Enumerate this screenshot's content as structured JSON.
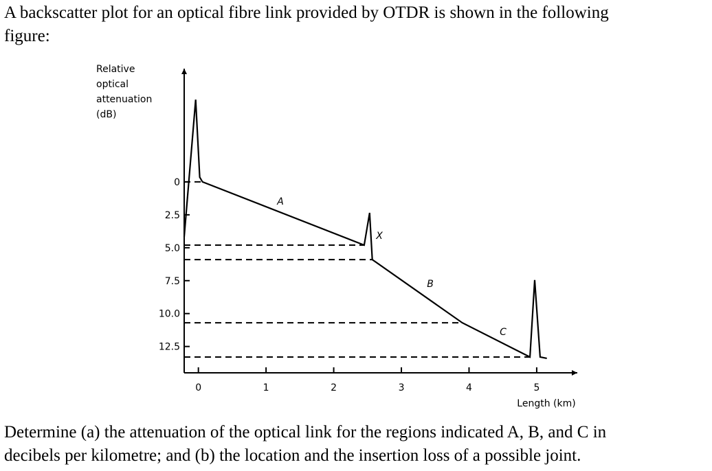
{
  "question": {
    "intro_lines": [
      "A backscatter plot for an optical fibre link provided by OTDR is shown in the following",
      "figure:"
    ],
    "task_lines": [
      "Determine (a) the attenuation of the optical link for the regions indicated A, B, and C in",
      "decibels per kilometre; and (b) the location and the insertion loss of a possible joint."
    ]
  },
  "chart_data": {
    "type": "line",
    "y_label_lines": [
      "Relative",
      "optical",
      "attenuation",
      "(dB)"
    ],
    "x_label": "Length (km)",
    "annotations": [
      "A",
      "X",
      "B",
      "C"
    ],
    "x": [
      -0.21,
      -0.04,
      0.02,
      0.06,
      2.45,
      2.53,
      2.57,
      3.9,
      4.9,
      4.97,
      5.05,
      5.15
    ],
    "series": [
      {
        "color": "#000000",
        "values": [
          4.17,
          -6.25,
          -0.36,
          0,
          4.8,
          2.35,
          5.9,
          10.7,
          13.3,
          7.45,
          13.3,
          13.4
        ]
      }
    ],
    "xlim": [
      -0.21,
      5.6
    ],
    "ylim": [
      14.5,
      -8.6
    ],
    "xticks": [
      0,
      1,
      2,
      3,
      4,
      5
    ],
    "yticks": [
      0,
      2.5,
      {
        "value": 5,
        "label": "5.0"
      },
      7.5,
      {
        "value": 10,
        "label": "10.0"
      },
      12.5
    ]
  }
}
